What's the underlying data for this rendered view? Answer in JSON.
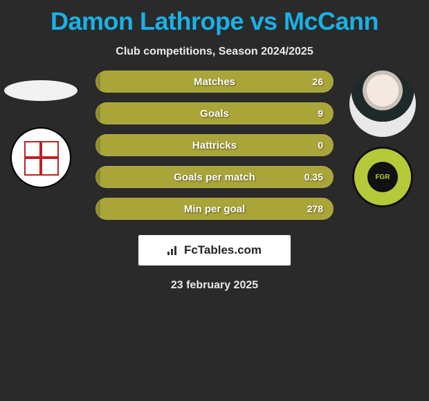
{
  "colors": {
    "background": "#2a2a2a",
    "title": "#19b1e5",
    "text": "#eaeaea",
    "bar_fill": "#aaa539",
    "bar_edge": "#8e8a2e",
    "bar_text": "#ffffff",
    "logo_bg": "#ffffff",
    "logo_text": "#222222"
  },
  "title": "Damon Lathrope vs McCann",
  "subtitle": "Club competitions, Season 2024/2025",
  "left_player": {
    "name": "Damon Lathrope",
    "club_badge": "woking-badge"
  },
  "right_player": {
    "name": "McCann",
    "club_badge": "forest-green-rovers-badge"
  },
  "stats": [
    {
      "label": "Matches",
      "right_value": "26"
    },
    {
      "label": "Goals",
      "right_value": "9"
    },
    {
      "label": "Hattricks",
      "right_value": "0"
    },
    {
      "label": "Goals per match",
      "right_value": "0.35"
    },
    {
      "label": "Min per goal",
      "right_value": "278"
    }
  ],
  "brand": {
    "name": "FcTables.com"
  },
  "date": "23 february 2025"
}
